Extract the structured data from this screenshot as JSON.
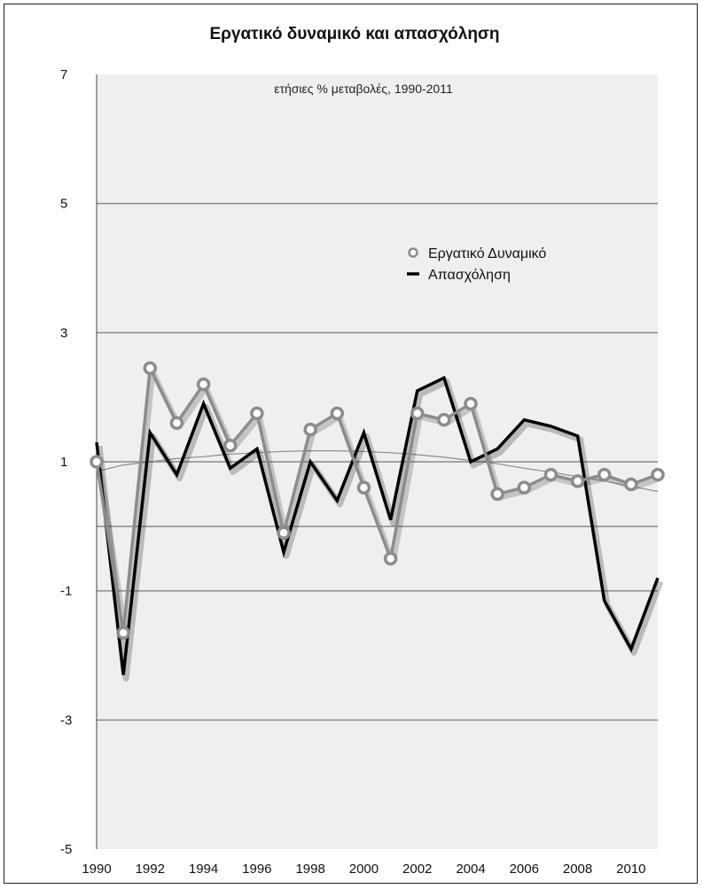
{
  "chart_data": {
    "type": "line",
    "title": "Εργατικό δυναμικό και απασχόληση",
    "subtitle": "ετήσιες % μεταβολές, 1990-2011",
    "xlabel": "",
    "ylabel": "",
    "x": [
      1990,
      1991,
      1992,
      1993,
      1994,
      1995,
      1996,
      1997,
      1998,
      1999,
      2000,
      2001,
      2002,
      2003,
      2004,
      2005,
      2006,
      2007,
      2008,
      2009,
      2010,
      2011
    ],
    "x_ticks": [
      1990,
      1992,
      1994,
      1996,
      1998,
      2000,
      2002,
      2004,
      2006,
      2008,
      2010
    ],
    "y_ticks": [
      7,
      5,
      3,
      1,
      -1,
      -3,
      -5
    ],
    "xlim": [
      1990,
      2011
    ],
    "ylim": [
      -5,
      7
    ],
    "grid": "horizontal",
    "legend": "top-right",
    "series": [
      {
        "name": "Εργατικό Δυναμικό",
        "marker": "circle",
        "color": "#8c8c8c",
        "values": [
          1.0,
          -1.65,
          2.45,
          1.6,
          2.2,
          1.25,
          1.75,
          -0.1,
          1.5,
          1.75,
          0.6,
          -0.5,
          1.75,
          1.65,
          1.9,
          0.5,
          0.6,
          0.8,
          0.7,
          0.8,
          0.65,
          0.8
        ]
      },
      {
        "name": "Απασχόληση",
        "marker": "none",
        "color": "#000000",
        "values": [
          1.3,
          -2.3,
          1.45,
          0.8,
          1.9,
          0.9,
          1.2,
          -0.4,
          1.0,
          0.4,
          1.45,
          0.1,
          2.1,
          2.3,
          1.0,
          1.2,
          1.65,
          1.55,
          1.4,
          -1.15,
          -1.9,
          -0.8
        ]
      }
    ],
    "trend_line": {
      "color": "#8c8c8c",
      "values": [
        0.85,
        0.95,
        1.0,
        1.05,
        1.08,
        1.12,
        1.14,
        1.16,
        1.17,
        1.17,
        1.16,
        1.14,
        1.11,
        1.07,
        1.02,
        0.97,
        0.9,
        0.84,
        0.77,
        0.7,
        0.62,
        0.54
      ]
    }
  }
}
